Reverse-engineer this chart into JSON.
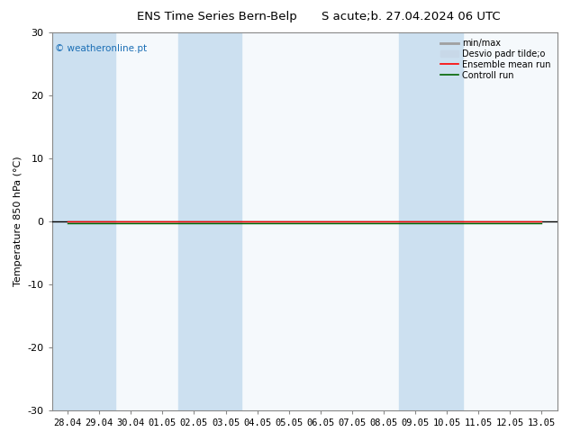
{
  "title_left": "ENS Time Series Bern-Belp",
  "title_right": "S acute;b. 27.04.2024 06 UTC",
  "ylabel": "Temperature 850 hPa (°C)",
  "ylim": [
    -30,
    30
  ],
  "yticks": [
    -30,
    -20,
    -10,
    0,
    10,
    20,
    30
  ],
  "x_labels": [
    "28.04",
    "29.04",
    "30.04",
    "01.05",
    "02.05",
    "03.05",
    "04.05",
    "05.05",
    "06.05",
    "07.05",
    "08.05",
    "09.05",
    "10.05",
    "11.05",
    "12.05",
    "13.05"
  ],
  "background_color": "#ffffff",
  "plot_bg_color": "#f5f9fc",
  "band_color": "#cce0f0",
  "zero_line_color": "#000000",
  "ensemble_mean_color": "#ff0000",
  "control_run_color": "#006400",
  "watermark": "© weatheronline.pt",
  "watermark_color": "#1a6eb5",
  "legend_items": [
    "min/max",
    "Desvio padr tilde;o",
    "Ensemble mean run",
    "Controll run"
  ],
  "minmax_legend_color": "#a0a0a0",
  "std_legend_color": "#c8d8e8",
  "shaded_x_indices": [
    0,
    1,
    4,
    5,
    11,
    12
  ],
  "figsize": [
    6.34,
    4.9
  ],
  "dpi": 100
}
